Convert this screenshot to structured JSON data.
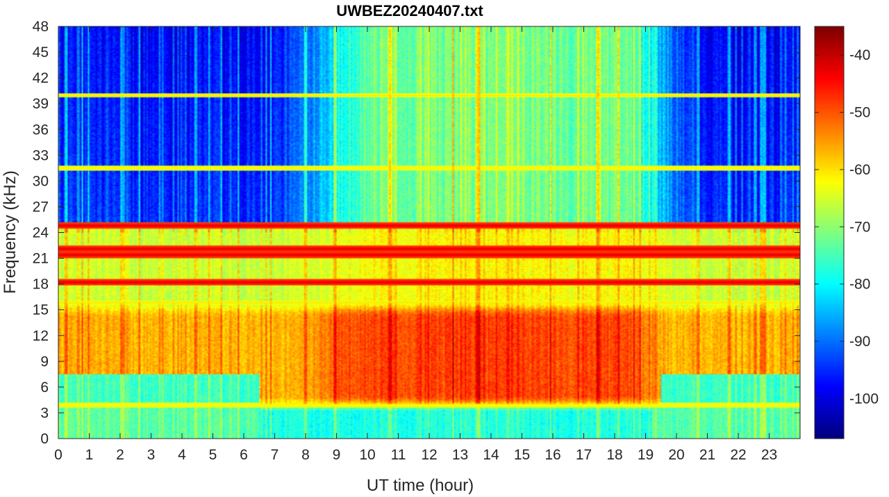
{
  "chart_data": {
    "type": "heatmap",
    "title": "UWBEZ20240407.txt",
    "xlabel": "UT time (hour)",
    "ylabel": "Frequency (kHz)",
    "xlim": [
      0,
      24
    ],
    "ylim": [
      0,
      48
    ],
    "x_ticks": [
      0,
      1,
      2,
      3,
      4,
      5,
      6,
      7,
      8,
      9,
      10,
      11,
      12,
      13,
      14,
      15,
      16,
      17,
      18,
      19,
      20,
      21,
      22,
      23
    ],
    "x_tick_labels": [
      "0",
      "1",
      "2",
      "3",
      "4",
      "5",
      "6",
      "7",
      "8",
      "9",
      "10",
      "11",
      "12",
      "13",
      "14",
      "15",
      "16",
      "17",
      "18",
      "19",
      "20",
      "21",
      "22",
      "23"
    ],
    "y_ticks": [
      0,
      3,
      6,
      9,
      12,
      15,
      18,
      21,
      24,
      27,
      30,
      33,
      36,
      39,
      42,
      45,
      48
    ],
    "y_tick_labels": [
      "0",
      "3",
      "6",
      "9",
      "12",
      "15",
      "18",
      "21",
      "24",
      "27",
      "30",
      "33",
      "36",
      "39",
      "42",
      "45",
      "48"
    ],
    "colorbar": {
      "colormap": "jet",
      "clim": [
        -107,
        -35
      ],
      "ticks": [
        -100,
        -90,
        -80,
        -70,
        -60,
        -50,
        -40
      ],
      "tick_labels": [
        "-100",
        "-90",
        "-80",
        "-70",
        "-60",
        "-50",
        "-40"
      ]
    },
    "features": {
      "strong_horizontal_lines_khz": [
        18.2,
        21.4,
        22.1,
        24.8
      ],
      "moderate_horizontal_lines_khz": [
        3.9,
        8.0,
        15.8,
        31.5,
        40.0
      ],
      "daytime_enhancement_hours": [
        9.5,
        18.0
      ],
      "daytime_enhancement_khz": [
        4,
        16
      ]
    }
  }
}
